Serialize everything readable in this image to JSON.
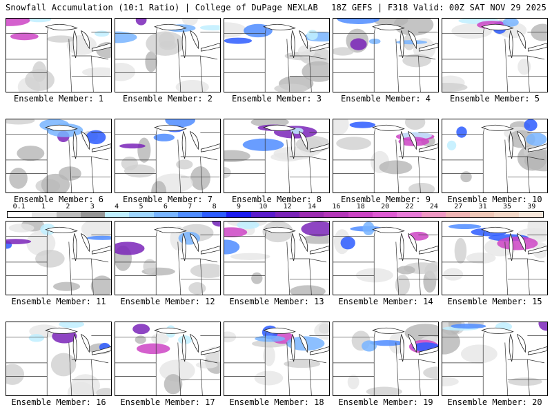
{
  "header": {
    "title": "Snowfall Accumulation (10:1 Ratio) | College of DuPage NEXLAB",
    "run_info": "18Z GEFS | F318 Valid: 00Z SAT NOV 29 2025"
  },
  "legend": {
    "labels": [
      "0.1",
      "1",
      "2",
      "3",
      "4",
      "5",
      "6",
      "7",
      "8",
      "9",
      "10",
      "12",
      "14",
      "16",
      "18",
      "20",
      "22",
      "24",
      "27",
      "31",
      "35",
      "39"
    ],
    "colors": [
      "#ffffff",
      "#e6e6e6",
      "#bdbdbd",
      "#969696",
      "#bfefff",
      "#9fd6ff",
      "#78b4ff",
      "#4f8cff",
      "#2d5cff",
      "#1c1cf0",
      "#5a1ccc",
      "#7a24b8",
      "#9c2cb0",
      "#b436b8",
      "#cc44c4",
      "#de5ad2",
      "#e87ad8",
      "#f098c4",
      "#f0b4b4",
      "#f0c8b8",
      "#f4d8c8",
      "#f8e8dc"
    ]
  },
  "panels": [
    {
      "label": "Ensemble Member: 1"
    },
    {
      "label": "Ensemble Member: 2"
    },
    {
      "label": "Ensemble Member: 3"
    },
    {
      "label": "Ensemble Member: 4"
    },
    {
      "label": "Ensemble Member: 5"
    },
    {
      "label": "Ensemble Member: 6"
    },
    {
      "label": "Ensemble Member: 7"
    },
    {
      "label": "Ensemble Member: 8"
    },
    {
      "label": "Ensemble Member: 9"
    },
    {
      "label": "Ensemble Member: 10"
    },
    {
      "label": "Ensemble Member: 11"
    },
    {
      "label": "Ensemble Member: 12"
    },
    {
      "label": "Ensemble Member: 13"
    },
    {
      "label": "Ensemble Member: 14"
    },
    {
      "label": "Ensemble Member: 15"
    },
    {
      "label": "Ensemble Member: 16"
    },
    {
      "label": "Ensemble Member: 17"
    },
    {
      "label": "Ensemble Member: 18"
    },
    {
      "label": "Ensemble Member: 19"
    },
    {
      "label": "Ensemble Member: 20"
    }
  ]
}
